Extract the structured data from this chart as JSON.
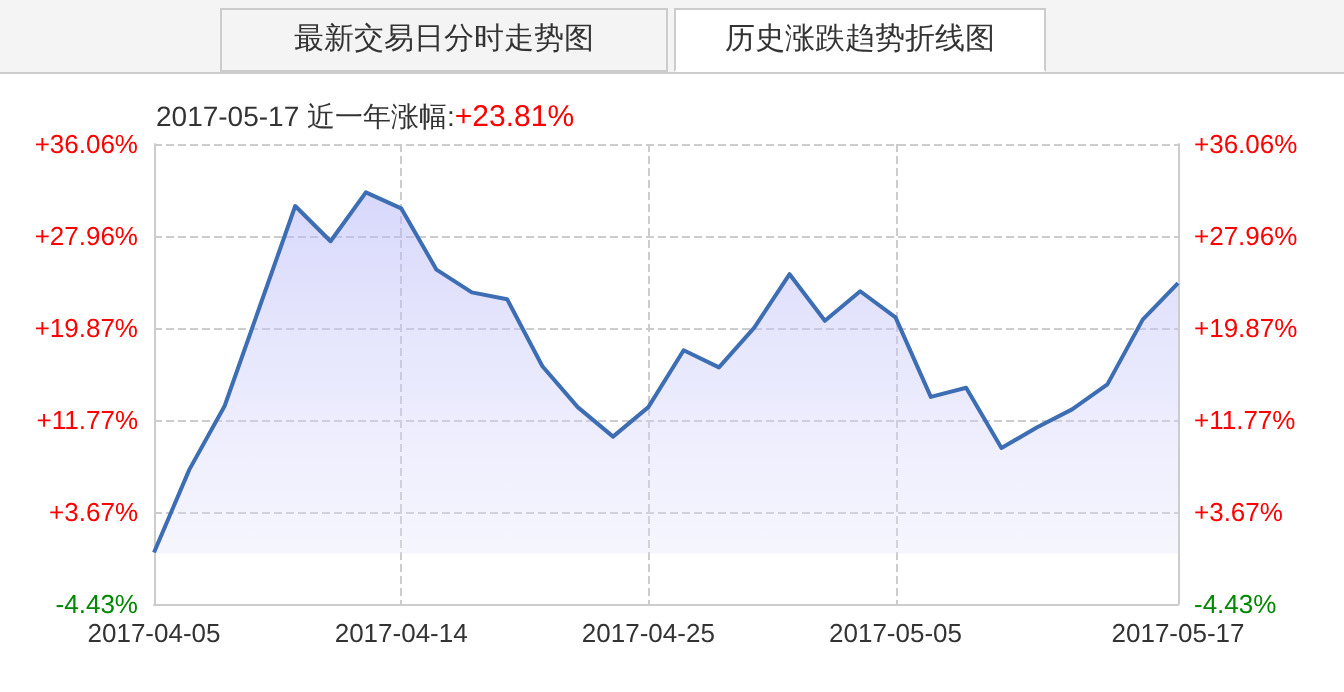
{
  "chart_data": {
    "type": "area",
    "title": "2017-05-17 近一年涨幅:",
    "subtitle": "+23.81%",
    "annotations": [
      "最新交易日分时走势图",
      "历史涨跌趋势折线图"
    ],
    "categories": [
      "2017-04-05",
      null,
      null,
      null,
      null,
      null,
      null,
      "2017-04-14",
      null,
      null,
      null,
      null,
      null,
      null,
      "2017-04-25",
      null,
      null,
      null,
      null,
      null,
      null,
      "2017-05-05",
      null,
      null,
      null,
      null,
      null,
      null,
      null,
      "2017-05-17"
    ],
    "series": [
      {
        "color": "#3d6db3",
        "values": [
          0.1,
          7.4,
          13.0,
          21.8,
          30.6,
          27.5,
          31.8,
          30.4,
          25.0,
          23.0,
          22.4,
          16.5,
          12.9,
          10.3,
          12.9,
          17.9,
          16.4,
          19.9,
          24.6,
          20.5,
          23.1,
          20.8,
          13.8,
          14.6,
          9.3,
          11.1,
          12.7,
          14.9,
          20.6,
          23.81
        ]
      }
    ],
    "ylim": [
      -4.43,
      36.06
    ],
    "yticks": [
      {
        "value": -4.43,
        "label": "-4.43%"
      },
      {
        "value": 3.67,
        "label": "+3.67%"
      },
      {
        "value": 11.77,
        "label": "+11.77%"
      },
      {
        "value": 19.87,
        "label": "+19.87%"
      },
      {
        "value": 27.96,
        "label": "+27.96%"
      },
      {
        "value": 36.06,
        "label": "+36.06%"
      }
    ],
    "y2lim": [
      -4.43,
      36.06
    ],
    "y2ticks": [
      {
        "value": -4.43,
        "label": "-4.43%"
      },
      {
        "value": 3.67,
        "label": "+3.67%"
      },
      {
        "value": 11.77,
        "label": "+11.77%"
      },
      {
        "value": 19.87,
        "label": "+19.87%"
      },
      {
        "value": 27.96,
        "label": "+27.96%"
      },
      {
        "value": 36.06,
        "label": "+36.06%"
      }
    ],
    "grid": true,
    "marker": "none",
    "line_style": "solid"
  }
}
